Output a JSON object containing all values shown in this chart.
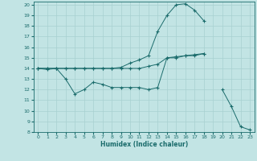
{
  "xlabel": "Humidex (Indice chaleur)",
  "bg_color": "#c2e4e4",
  "line_color": "#1a6b6b",
  "grid_color": "#a8d0d0",
  "xlim": [
    -0.5,
    23.5
  ],
  "ylim": [
    8,
    20.3
  ],
  "xticks": [
    0,
    1,
    2,
    3,
    4,
    5,
    6,
    7,
    8,
    9,
    10,
    11,
    12,
    13,
    14,
    15,
    16,
    17,
    18,
    19,
    20,
    21,
    22,
    23
  ],
  "yticks": [
    8,
    9,
    10,
    11,
    12,
    13,
    14,
    15,
    16,
    17,
    18,
    19,
    20
  ],
  "series": [
    {
      "x": [
        0,
        1,
        2,
        3,
        4,
        5,
        6,
        7,
        8,
        9,
        10,
        11,
        12,
        13,
        14,
        15,
        16,
        17,
        18,
        19,
        20,
        21,
        22,
        23
      ],
      "y": [
        14,
        13.9,
        14,
        13,
        11.6,
        12,
        12.7,
        12.5,
        12.2,
        12.2,
        12.2,
        12.2,
        12,
        12.2,
        15,
        15,
        15.2,
        15.2,
        15.4,
        null,
        12,
        10.4,
        8.5,
        8.2
      ]
    },
    {
      "x": [
        0,
        1,
        2,
        3,
        4,
        5,
        6,
        7,
        8,
        9,
        10,
        11,
        12,
        13,
        14,
        15,
        16,
        17,
        18
      ],
      "y": [
        14,
        14,
        14,
        14,
        14,
        14,
        14,
        14,
        14,
        14,
        14,
        14,
        14.2,
        14.4,
        15,
        15.1,
        15.2,
        15.3,
        15.4
      ]
    },
    {
      "x": [
        0,
        1,
        2,
        3,
        4,
        5,
        6,
        7,
        8,
        9,
        10,
        11,
        12,
        13,
        14,
        15,
        16,
        17,
        18
      ],
      "y": [
        14,
        14,
        14,
        14,
        14,
        14,
        14,
        14,
        14,
        14.1,
        14.5,
        14.8,
        15.2,
        17.5,
        19.0,
        20.0,
        20.1,
        19.5,
        18.5
      ]
    }
  ]
}
